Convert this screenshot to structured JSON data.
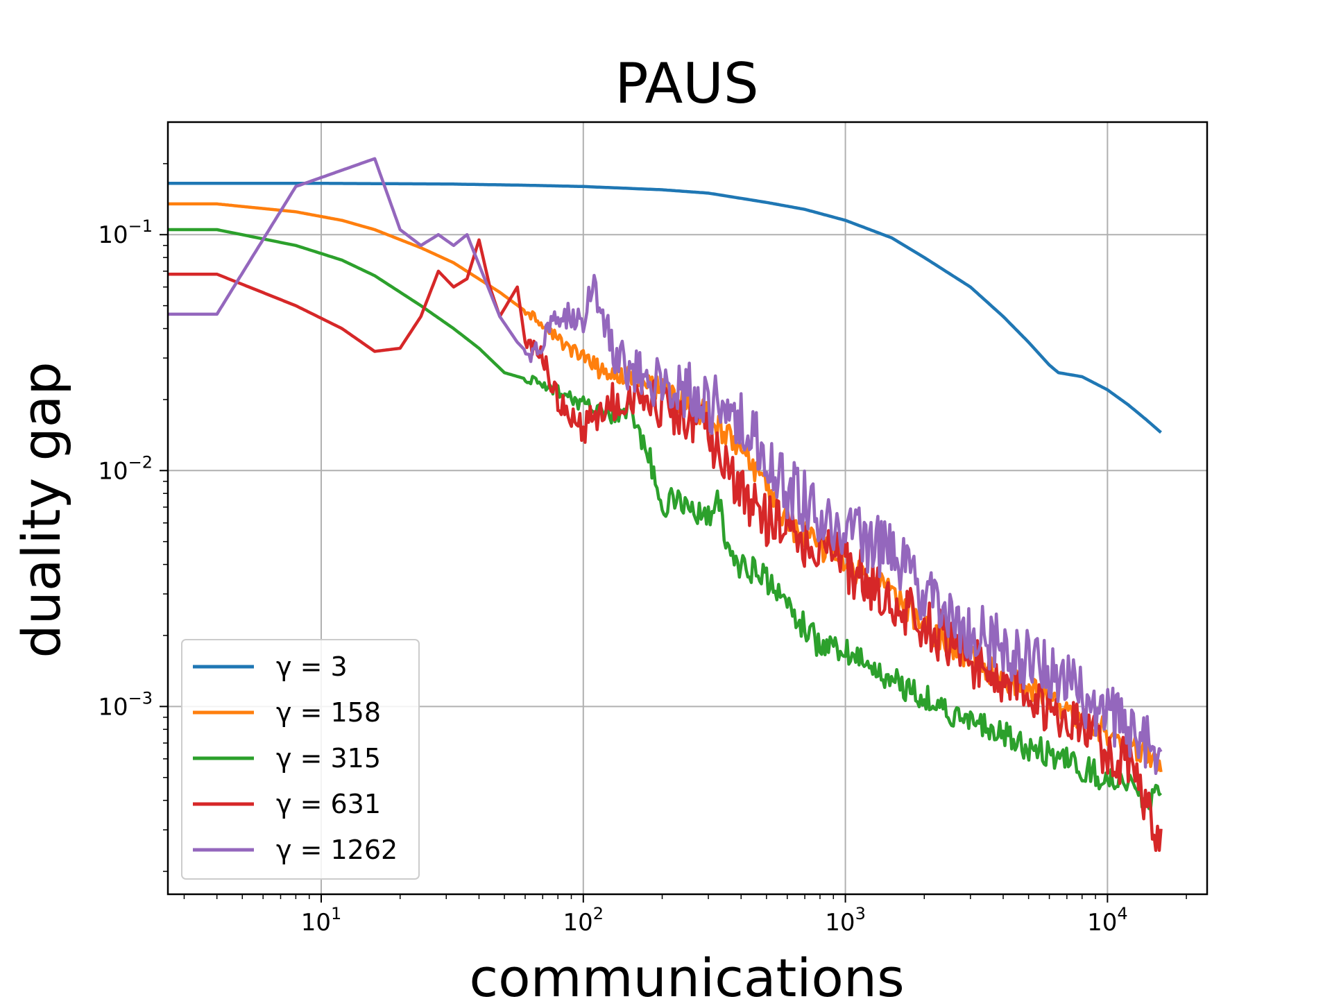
{
  "chart_data": {
    "type": "line",
    "title": "PAUS",
    "xlabel": "communications",
    "ylabel": "duality gap",
    "xscale": "log",
    "yscale": "log",
    "xlim": [
      2.6,
      24000
    ],
    "ylim": [
      0.00016,
      0.3
    ],
    "grid": true,
    "legend_position": "lower-left",
    "x_ticks": [
      {
        "value": 10,
        "base": "10",
        "exp": "1"
      },
      {
        "value": 100,
        "base": "10",
        "exp": "2"
      },
      {
        "value": 1000,
        "base": "10",
        "exp": "3"
      },
      {
        "value": 10000,
        "base": "10",
        "exp": "4"
      }
    ],
    "y_ticks": [
      {
        "value": 0.1,
        "base": "10",
        "exp": "−1"
      },
      {
        "value": 0.01,
        "base": "10",
        "exp": "−2"
      },
      {
        "value": 0.001,
        "base": "10",
        "exp": "−3"
      }
    ],
    "series": [
      {
        "name": "γ = 3",
        "color": "#1f77b4",
        "noise": 0,
        "points": [
          [
            2,
            0.165
          ],
          [
            4,
            0.165
          ],
          [
            10,
            0.165
          ],
          [
            30,
            0.164
          ],
          [
            60,
            0.162
          ],
          [
            100,
            0.16
          ],
          [
            200,
            0.155
          ],
          [
            300,
            0.15
          ],
          [
            500,
            0.137
          ],
          [
            700,
            0.128
          ],
          [
            1000,
            0.115
          ],
          [
            1500,
            0.097
          ],
          [
            2000,
            0.08
          ],
          [
            3000,
            0.06
          ],
          [
            4000,
            0.045
          ],
          [
            5000,
            0.035
          ],
          [
            6000,
            0.028
          ],
          [
            6500,
            0.026
          ],
          [
            8000,
            0.025
          ],
          [
            10000,
            0.022
          ],
          [
            12000,
            0.019
          ],
          [
            14000,
            0.0165
          ],
          [
            16000,
            0.0145
          ]
        ]
      },
      {
        "name": "γ = 158",
        "color": "#ff7f0e",
        "noise": 0.06,
        "points": [
          [
            2,
            0.135
          ],
          [
            4,
            0.135
          ],
          [
            8,
            0.125
          ],
          [
            12,
            0.115
          ],
          [
            16,
            0.105
          ],
          [
            24,
            0.088
          ],
          [
            32,
            0.076
          ],
          [
            48,
            0.057
          ],
          [
            64,
            0.045
          ],
          [
            80,
            0.036
          ],
          [
            100,
            0.03
          ],
          [
            120,
            0.026
          ],
          [
            160,
            0.025
          ],
          [
            200,
            0.022
          ],
          [
            250,
            0.019
          ],
          [
            300,
            0.017
          ],
          [
            400,
            0.012
          ],
          [
            500,
            0.0085
          ],
          [
            600,
            0.006
          ],
          [
            800,
            0.0048
          ],
          [
            1000,
            0.004
          ],
          [
            1500,
            0.003
          ],
          [
            2000,
            0.0022
          ],
          [
            3000,
            0.0016
          ],
          [
            4000,
            0.0013
          ],
          [
            6000,
            0.0011
          ],
          [
            8000,
            0.0009
          ],
          [
            12000,
            0.0007
          ],
          [
            16000,
            0.00055
          ]
        ]
      },
      {
        "name": "γ = 315",
        "color": "#2ca02c",
        "noise": 0.06,
        "points": [
          [
            2,
            0.105
          ],
          [
            4,
            0.105
          ],
          [
            8,
            0.09
          ],
          [
            12,
            0.078
          ],
          [
            16,
            0.067
          ],
          [
            24,
            0.05
          ],
          [
            32,
            0.04
          ],
          [
            40,
            0.033
          ],
          [
            50,
            0.026
          ],
          [
            64,
            0.024
          ],
          [
            80,
            0.022
          ],
          [
            100,
            0.019
          ],
          [
            130,
            0.017
          ],
          [
            150,
            0.018
          ],
          [
            180,
            0.011
          ],
          [
            200,
            0.0065
          ],
          [
            220,
            0.008
          ],
          [
            260,
            0.007
          ],
          [
            300,
            0.0062
          ],
          [
            330,
            0.0075
          ],
          [
            360,
            0.0042
          ],
          [
            400,
            0.004
          ],
          [
            500,
            0.0035
          ],
          [
            600,
            0.0026
          ],
          [
            700,
            0.0022
          ],
          [
            800,
            0.0018
          ],
          [
            1000,
            0.0017
          ],
          [
            1500,
            0.0013
          ],
          [
            2000,
            0.0011
          ],
          [
            3000,
            0.00085
          ],
          [
            4000,
            0.00075
          ],
          [
            6000,
            0.00062
          ],
          [
            8000,
            0.00055
          ],
          [
            12000,
            0.00045
          ],
          [
            16000,
            0.0004
          ]
        ]
      },
      {
        "name": "γ = 631",
        "color": "#d62728",
        "noise": 0.12,
        "points": [
          [
            2,
            0.068
          ],
          [
            4,
            0.068
          ],
          [
            8,
            0.05
          ],
          [
            12,
            0.04
          ],
          [
            16,
            0.032
          ],
          [
            20,
            0.033
          ],
          [
            24,
            0.045
          ],
          [
            28,
            0.07
          ],
          [
            32,
            0.06
          ],
          [
            36,
            0.065
          ],
          [
            40,
            0.095
          ],
          [
            44,
            0.06
          ],
          [
            48,
            0.045
          ],
          [
            56,
            0.06
          ],
          [
            60,
            0.035
          ],
          [
            70,
            0.03
          ],
          [
            80,
            0.02
          ],
          [
            100,
            0.015
          ],
          [
            120,
            0.019
          ],
          [
            150,
            0.02
          ],
          [
            170,
            0.021
          ],
          [
            200,
            0.018
          ],
          [
            250,
            0.016
          ],
          [
            300,
            0.014
          ],
          [
            350,
            0.01
          ],
          [
            400,
            0.0078
          ],
          [
            500,
            0.006
          ],
          [
            600,
            0.0055
          ],
          [
            800,
            0.0048
          ],
          [
            1000,
            0.004
          ],
          [
            1500,
            0.0028
          ],
          [
            2000,
            0.0022
          ],
          [
            3000,
            0.0016
          ],
          [
            4000,
            0.0013
          ],
          [
            6000,
            0.001
          ],
          [
            8000,
            0.0008
          ],
          [
            12000,
            0.00055
          ],
          [
            16000,
            0.00028
          ]
        ]
      },
      {
        "name": "γ = 1262",
        "color": "#9467bd",
        "noise": 0.13,
        "points": [
          [
            2,
            0.046
          ],
          [
            4,
            0.046
          ],
          [
            8,
            0.16
          ],
          [
            16,
            0.21
          ],
          [
            20,
            0.105
          ],
          [
            24,
            0.09
          ],
          [
            28,
            0.1
          ],
          [
            32,
            0.09
          ],
          [
            36,
            0.1
          ],
          [
            48,
            0.045
          ],
          [
            56,
            0.035
          ],
          [
            64,
            0.03
          ],
          [
            80,
            0.045
          ],
          [
            100,
            0.045
          ],
          [
            110,
            0.058
          ],
          [
            130,
            0.032
          ],
          [
            150,
            0.026
          ],
          [
            200,
            0.024
          ],
          [
            250,
            0.022
          ],
          [
            300,
            0.019
          ],
          [
            350,
            0.02
          ],
          [
            400,
            0.016
          ],
          [
            500,
            0.012
          ],
          [
            600,
            0.0085
          ],
          [
            800,
            0.0065
          ],
          [
            1000,
            0.0055
          ],
          [
            1500,
            0.0045
          ],
          [
            2000,
            0.003
          ],
          [
            3000,
            0.0021
          ],
          [
            4000,
            0.0018
          ],
          [
            6000,
            0.0014
          ],
          [
            8000,
            0.0011
          ],
          [
            12000,
            0.0008
          ],
          [
            16000,
            0.0006
          ]
        ]
      }
    ]
  }
}
